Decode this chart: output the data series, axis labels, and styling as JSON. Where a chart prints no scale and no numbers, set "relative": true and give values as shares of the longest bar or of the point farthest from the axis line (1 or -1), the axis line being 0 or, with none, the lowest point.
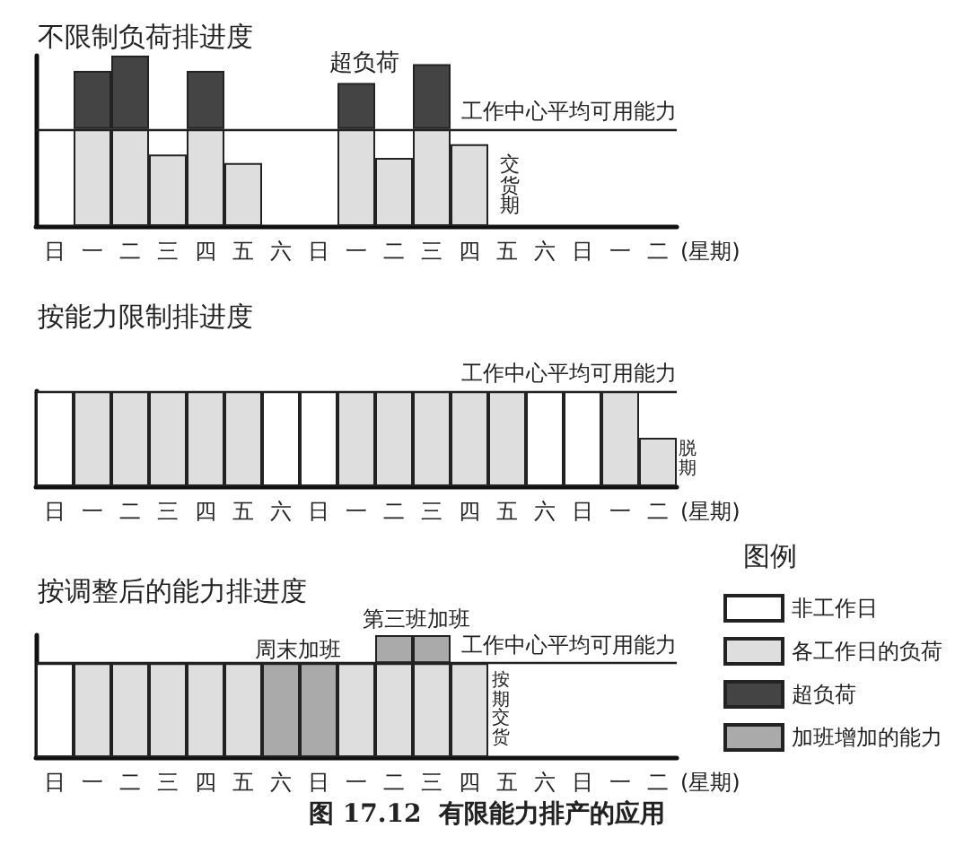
{
  "chart_data": [
    {
      "type": "bar",
      "title": "不限制负荷排进度",
      "xlabel": "(星期)",
      "categories": [
        "日",
        "一",
        "二",
        "三",
        "四",
        "五",
        "六",
        "日",
        "一",
        "二",
        "三",
        "四",
        "五",
        "六",
        "日",
        "一",
        "二"
      ],
      "relative": true,
      "stacked": true,
      "series": [
        {
          "color": "#dedede",
          "values": [
            null,
            0.57,
            0.57,
            0.42,
            0.57,
            0.37,
            null,
            null,
            0.57,
            0.4,
            0.57,
            0.48,
            null,
            null,
            null,
            null,
            null
          ]
        },
        {
          "color": "#444444",
          "values": [
            null,
            0.34,
            0.43,
            null,
            0.34,
            null,
            null,
            null,
            0.27,
            null,
            0.38,
            null,
            null,
            null,
            null,
            null,
            null
          ]
        }
      ],
      "ref_lines": [
        {
          "axis": "y",
          "value": 0.57,
          "label": "工作中心平均可用能力"
        }
      ],
      "annotations": [
        "超负荷",
        "交货期"
      ]
    },
    {
      "type": "bar",
      "title": "按能力限制排进度",
      "xlabel": "(星期)",
      "categories": [
        "日",
        "一",
        "二",
        "三",
        "四",
        "五",
        "六",
        "日",
        "一",
        "二",
        "三",
        "四",
        "五",
        "六",
        "日",
        "一",
        "二"
      ],
      "relative": true,
      "stacked": true,
      "series": [
        {
          "color": "#ffffff",
          "values": [
            1,
            null,
            null,
            null,
            null,
            null,
            1,
            1,
            null,
            null,
            null,
            null,
            null,
            1,
            1,
            null,
            null
          ]
        },
        {
          "color": "#dedede",
          "values": [
            null,
            1,
            1,
            1,
            1,
            1,
            null,
            null,
            1,
            1,
            1,
            1,
            1,
            null,
            null,
            1,
            0.51
          ]
        }
      ],
      "ref_lines": [
        {
          "axis": "y",
          "value": 1,
          "label": "工作中心平均可用能力"
        }
      ],
      "annotations": [
        "脱期"
      ]
    },
    {
      "type": "bar",
      "title": "按调整后的能力排进度",
      "xlabel": "(星期)",
      "categories": [
        "日",
        "一",
        "二",
        "三",
        "四",
        "五",
        "六",
        "日",
        "一",
        "二",
        "三",
        "四",
        "五",
        "六",
        "日",
        "一",
        "二"
      ],
      "relative": true,
      "stacked": true,
      "legend": "right",
      "legend_title": "图例",
      "series": [
        {
          "name": "非工作日",
          "color": "#ffffff",
          "values": [
            0.77,
            null,
            null,
            null,
            null,
            null,
            null,
            null,
            null,
            null,
            null,
            null,
            null,
            null,
            null,
            null,
            null
          ]
        },
        {
          "name": "各工作日的负荷",
          "color": "#dedede",
          "values": [
            null,
            0.77,
            0.77,
            0.77,
            0.77,
            0.77,
            null,
            null,
            0.77,
            0.77,
            0.77,
            0.77,
            null,
            null,
            null,
            null,
            null
          ]
        },
        {
          "name": "超负荷",
          "color": "#444444",
          "values": [
            null,
            null,
            null,
            null,
            null,
            null,
            null,
            null,
            null,
            null,
            null,
            null,
            null,
            null,
            null,
            null,
            null
          ]
        },
        {
          "name": "加班增加的能力",
          "color": "#aaaaaa",
          "values": [
            null,
            null,
            null,
            null,
            null,
            null,
            0.77,
            0.77,
            null,
            0.23,
            0.23,
            null,
            null,
            null,
            null,
            null,
            null
          ]
        }
      ],
      "ref_lines": [
        {
          "axis": "y",
          "value": 0.77,
          "label": "工作中心平均可用能力"
        }
      ],
      "annotations": [
        "周末加班",
        "第三班加班",
        "按期交货",
        "图 17.12  有限能力排产的应用"
      ]
    }
  ]
}
